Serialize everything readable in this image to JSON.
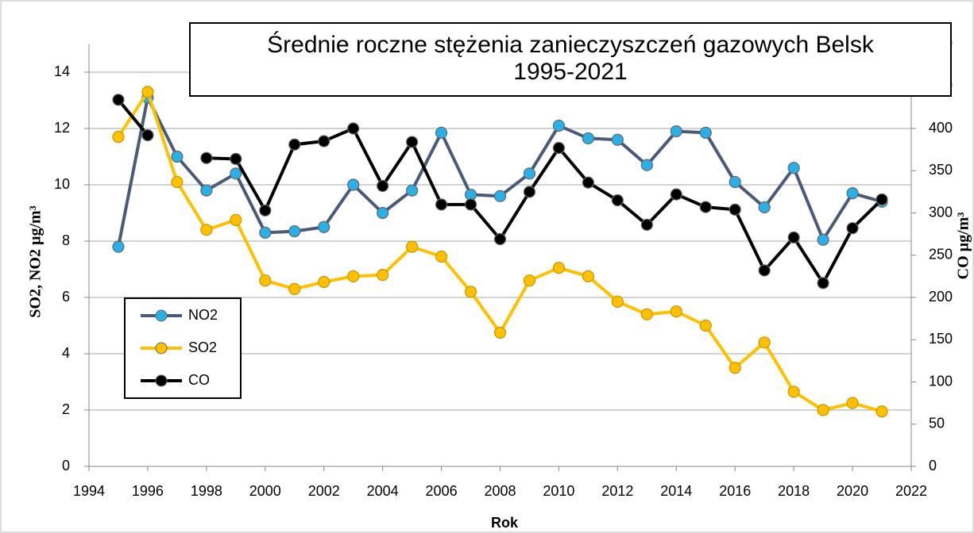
{
  "chart_data": {
    "type": "line",
    "title": "Średnie roczne stężenia zanieczyszczeń gazowych Belsk\n1995-2021",
    "x_label": "Rok",
    "y_label": "SO2, NO2 µg/m³",
    "y2_label": "CO µg/m³",
    "x": [
      1995,
      1996,
      1997,
      1998,
      1999,
      2000,
      2001,
      2002,
      2003,
      2004,
      2005,
      2006,
      2007,
      2008,
      2009,
      2010,
      2011,
      2012,
      2013,
      2014,
      2015,
      2016,
      2017,
      2018,
      2019,
      2020,
      2021
    ],
    "series": [
      {
        "name": "NO2",
        "color": "#4a5a78",
        "marker_color": "#29b0e8",
        "values": [
          7.8,
          13.1,
          11.0,
          9.8,
          10.4,
          8.3,
          8.35,
          8.5,
          10.0,
          9.0,
          9.8,
          11.85,
          9.65,
          9.6,
          10.4,
          12.1,
          11.65,
          11.6,
          10.7,
          11.9,
          11.85,
          10.1,
          9.2,
          10.6,
          8.05,
          9.7,
          9.4
        ]
      },
      {
        "name": "SO2",
        "color": "#ffc000",
        "marker_color": "#ffc000",
        "values": [
          11.7,
          13.3,
          10.1,
          8.4,
          8.75,
          6.6,
          6.3,
          6.55,
          6.75,
          6.8,
          7.8,
          7.45,
          6.2,
          4.75,
          6.6,
          7.05,
          6.75,
          5.85,
          5.4,
          5.5,
          5.0,
          3.5,
          4.4,
          2.65,
          2.0,
          2.25,
          1.95
        ]
      },
      {
        "name": "CO",
        "color": "#000000",
        "marker_color": "#000000",
        "axis": "y2",
        "values": [
          434,
          392,
          null,
          365,
          364,
          303,
          381,
          385,
          400,
          332,
          384,
          310,
          310,
          269,
          325,
          377,
          336,
          315,
          286,
          322,
          307,
          304,
          232,
          271,
          217,
          282,
          316
        ]
      }
    ],
    "xlim": [
      1994,
      2022
    ],
    "xticks": [
      1994,
      1996,
      1998,
      2000,
      2002,
      2004,
      2006,
      2008,
      2010,
      2012,
      2014,
      2016,
      2018,
      2020,
      2022
    ],
    "ylim": [
      0,
      15
    ],
    "yticks": [
      0,
      2,
      4,
      6,
      8,
      10,
      12,
      14
    ],
    "y2lim": [
      0,
      500
    ],
    "y2ticks": [
      0,
      50,
      100,
      150,
      200,
      250,
      300,
      350,
      400,
      450,
      500
    ],
    "grid": true,
    "legend": "lower left"
  }
}
